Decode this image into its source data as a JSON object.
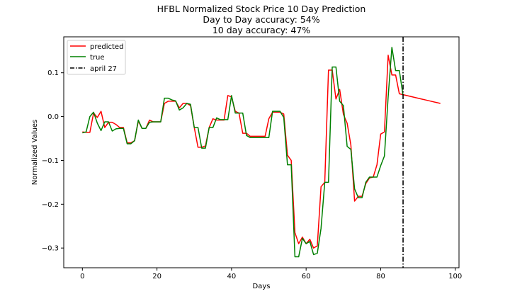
{
  "chart_data": {
    "type": "line",
    "title_lines": [
      "HFBL Normalized Stock Price 10 Day Prediction",
      "Day to Day accuracy: 54%",
      "10 day accuracy: 47%"
    ],
    "xlabel": "Days",
    "ylabel": "Normalized Values",
    "xlim": [
      -5,
      101
    ],
    "ylim": [
      -0.345,
      0.182
    ],
    "xticks": [
      0,
      20,
      40,
      60,
      80,
      100
    ],
    "yticks": [
      0.1,
      0.0,
      -0.1,
      -0.2,
      -0.3
    ],
    "ytick_labels": [
      "0.1",
      "0.0",
      "−0.1",
      "−0.2",
      "−0.3"
    ],
    "legend_position": "upper-left",
    "series": [
      {
        "name": "predicted",
        "color": "#ff0000",
        "style": "solid",
        "x": [
          0,
          1,
          2,
          3,
          4,
          5,
          6,
          7,
          8,
          9,
          10,
          11,
          12,
          13,
          14,
          15,
          16,
          17,
          18,
          19,
          20,
          21,
          22,
          23,
          24,
          25,
          26,
          27,
          28,
          29,
          30,
          31,
          32,
          33,
          34,
          35,
          36,
          37,
          38,
          39,
          40,
          41,
          42,
          43,
          44,
          45,
          46,
          47,
          48,
          49,
          50,
          51,
          52,
          53,
          54,
          55,
          56,
          57,
          58,
          59,
          60,
          61,
          62,
          63,
          64,
          65,
          66,
          67,
          68,
          69,
          70,
          71,
          72,
          73,
          74,
          75,
          76,
          77,
          78,
          79,
          80,
          81,
          82,
          83,
          84,
          85,
          86,
          87,
          88,
          89,
          90,
          91,
          92,
          93,
          94,
          95,
          96
        ],
        "y": [
          -0.035,
          -0.036,
          -0.036,
          0.008,
          -0.002,
          0.012,
          -0.025,
          -0.013,
          -0.013,
          -0.018,
          -0.025,
          -0.025,
          -0.06,
          -0.06,
          -0.055,
          -0.01,
          -0.027,
          -0.027,
          -0.008,
          -0.012,
          -0.012,
          -0.012,
          0.03,
          0.035,
          0.035,
          0.035,
          0.02,
          0.03,
          0.03,
          0.025,
          -0.025,
          -0.07,
          -0.07,
          -0.067,
          -0.025,
          -0.005,
          -0.008,
          -0.008,
          -0.008,
          0.048,
          0.045,
          0.012,
          0.008,
          -0.038,
          -0.038,
          -0.045,
          -0.045,
          -0.045,
          -0.045,
          -0.045,
          -0.005,
          0.01,
          0.01,
          0.01,
          0.006,
          -0.088,
          -0.1,
          -0.265,
          -0.29,
          -0.275,
          -0.29,
          -0.28,
          -0.3,
          -0.295,
          -0.16,
          -0.15,
          0.106,
          0.106,
          0.04,
          0.062,
          0.005,
          -0.015,
          -0.065,
          -0.193,
          -0.182,
          -0.182,
          -0.153,
          -0.14,
          -0.138,
          -0.11,
          -0.04,
          -0.035,
          0.14,
          0.095,
          0.095,
          0.052,
          0.05,
          0.048,
          0.046,
          0.044,
          0.042,
          0.04,
          0.038,
          0.036,
          0.034,
          0.032,
          0.03
        ]
      },
      {
        "name": "true",
        "color": "#008000",
        "style": "solid",
        "x": [
          0,
          1,
          2,
          3,
          4,
          5,
          6,
          7,
          8,
          9,
          10,
          11,
          12,
          13,
          14,
          15,
          16,
          17,
          18,
          19,
          20,
          21,
          22,
          23,
          24,
          25,
          26,
          27,
          28,
          29,
          30,
          31,
          32,
          33,
          34,
          35,
          36,
          37,
          38,
          39,
          40,
          41,
          42,
          43,
          44,
          45,
          46,
          47,
          48,
          49,
          50,
          51,
          52,
          53,
          54,
          55,
          56,
          57,
          58,
          59,
          60,
          61,
          62,
          63,
          64,
          65,
          66,
          67,
          68,
          69,
          70,
          71,
          72,
          73,
          74,
          75,
          76,
          77,
          78,
          79,
          80,
          81,
          82,
          83,
          84,
          85,
          86
        ],
        "y": [
          -0.037,
          -0.035,
          0.0,
          0.01,
          -0.015,
          -0.032,
          -0.012,
          -0.012,
          -0.033,
          -0.028,
          -0.027,
          -0.027,
          -0.062,
          -0.062,
          -0.055,
          -0.008,
          -0.027,
          -0.027,
          -0.013,
          -0.012,
          -0.012,
          -0.012,
          0.042,
          0.042,
          0.038,
          0.036,
          0.015,
          0.02,
          0.03,
          0.028,
          -0.025,
          -0.025,
          -0.072,
          -0.072,
          -0.025,
          -0.025,
          -0.003,
          -0.007,
          -0.007,
          -0.007,
          0.048,
          0.008,
          0.008,
          0.008,
          -0.043,
          -0.048,
          -0.048,
          -0.048,
          -0.048,
          -0.048,
          -0.048,
          0.012,
          0.012,
          0.012,
          -0.002,
          -0.11,
          -0.11,
          -0.32,
          -0.32,
          -0.278,
          -0.29,
          -0.285,
          -0.315,
          -0.312,
          -0.255,
          -0.15,
          -0.15,
          0.113,
          0.113,
          0.035,
          0.025,
          -0.068,
          -0.075,
          -0.165,
          -0.185,
          -0.185,
          -0.15,
          -0.138,
          -0.138,
          -0.138,
          -0.112,
          -0.09,
          0.045,
          0.158,
          0.105,
          0.105,
          0.048
        ]
      },
      {
        "name": "april 27",
        "color": "#000000",
        "style": "dashdot",
        "vline_x": 86
      }
    ]
  }
}
